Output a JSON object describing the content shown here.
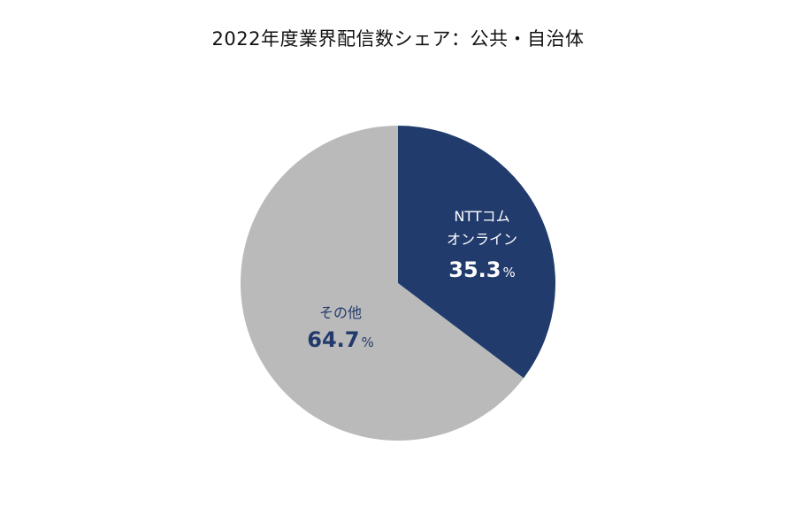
{
  "chart_data": {
    "type": "pie",
    "title": "2022年度業界配信数シェア：公共・自治体",
    "slices": [
      {
        "label_lines": [
          "NTTコム",
          "オンライン"
        ],
        "value": 35.3,
        "display": "35.3",
        "unit": "%",
        "color": "#213b6d"
      },
      {
        "label_lines": [
          "その他"
        ],
        "value": 64.7,
        "display": "64.7",
        "unit": "%",
        "color": "#bababa"
      }
    ]
  }
}
